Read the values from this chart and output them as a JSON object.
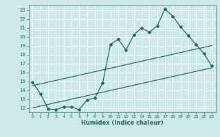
{
  "xlabel": "Humidex (Indice chaleur)",
  "bg_color": "#cce8e8",
  "grid_color": "#ffffff",
  "line_color": "#1a6b5a",
  "xlim": [
    -0.5,
    23.5
  ],
  "ylim": [
    11.5,
    23.5
  ],
  "xticks": [
    0,
    1,
    2,
    3,
    4,
    5,
    6,
    7,
    8,
    9,
    10,
    11,
    12,
    13,
    14,
    15,
    16,
    17,
    18,
    19,
    20,
    21,
    22,
    23
  ],
  "yticks": [
    12,
    13,
    14,
    15,
    16,
    17,
    18,
    19,
    20,
    21,
    22,
    23
  ],
  "main_x": [
    0,
    1,
    2,
    3,
    4,
    5,
    6,
    7,
    8,
    9,
    10,
    11,
    12,
    13,
    14,
    15,
    16,
    17,
    18,
    19,
    20,
    21,
    22,
    23
  ],
  "main_y": [
    14.9,
    13.6,
    11.9,
    11.8,
    12.1,
    12.1,
    11.8,
    12.9,
    13.1,
    14.8,
    19.1,
    19.7,
    18.5,
    20.2,
    21.0,
    20.5,
    21.2,
    23.1,
    22.3,
    21.1,
    20.1,
    19.1,
    18.1,
    16.7
  ],
  "line1_x": [
    0,
    23
  ],
  "line1_y": [
    12.0,
    16.5
  ],
  "line2_x": [
    0,
    23
  ],
  "line2_y": [
    14.5,
    19.0
  ]
}
